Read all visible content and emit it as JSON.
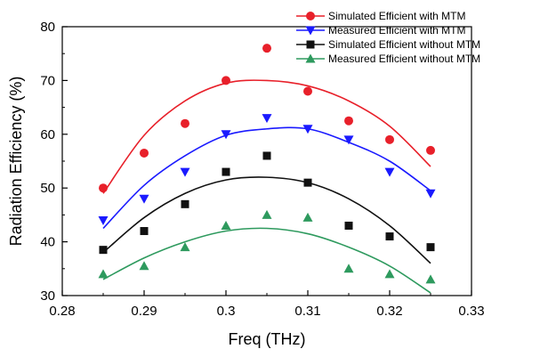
{
  "chart_data": {
    "type": "scatter",
    "xlabel": "Freq (THz)",
    "ylabel": "Radiation Efficiency (%)",
    "xlim": [
      0.28,
      0.33
    ],
    "ylim": [
      30,
      80
    ],
    "x_ticks": [
      "0.28",
      "0.29",
      "0.3",
      "0.31",
      "0.32",
      "0.33"
    ],
    "y_ticks": [
      "30",
      "40",
      "50",
      "60",
      "70",
      "80"
    ],
    "legend_position": "top-right",
    "grid": false,
    "x": [
      0.285,
      0.29,
      0.295,
      0.3,
      0.305,
      0.31,
      0.315,
      0.32,
      0.325
    ],
    "series": [
      {
        "name": "Simulated Efficient with MTM",
        "color": "#e8202a",
        "marker": "circle",
        "values": [
          50,
          56.5,
          62,
          70,
          76,
          68,
          62.5,
          59,
          57
        ],
        "fit": [
          49,
          59.8,
          66.2,
          69.5,
          70,
          69,
          66.2,
          61.5,
          54
        ]
      },
      {
        "name": "Measured Efficient with MTM",
        "color": "#1a1aff",
        "marker": "triangle-down",
        "values": [
          44,
          48,
          53,
          60,
          63,
          61,
          59,
          53,
          49
        ],
        "fit": [
          42.5,
          50.5,
          56,
          59.8,
          61,
          61,
          58.5,
          55,
          49.5
        ]
      },
      {
        "name": "Simulated Efficient without MTM",
        "color": "#111111",
        "marker": "square",
        "values": [
          38.5,
          42,
          47,
          53,
          56,
          51,
          43,
          41,
          39
        ],
        "fit": [
          38,
          44.5,
          49,
          51.5,
          52,
          51,
          48,
          43,
          36
        ]
      },
      {
        "name": "Measured Efficient without MTM",
        "color": "#2e9a5e",
        "marker": "triangle-up",
        "values": [
          34,
          35.5,
          39,
          43,
          45,
          44.5,
          35,
          34,
          33
        ],
        "fit": [
          33,
          37,
          40,
          42,
          42.5,
          41.5,
          39,
          35.5,
          30.5
        ]
      }
    ]
  }
}
